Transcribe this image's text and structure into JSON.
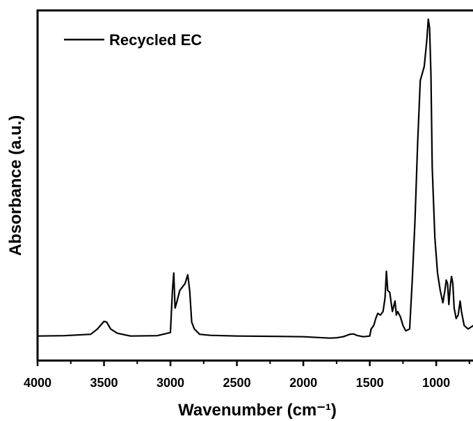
{
  "chart_data": {
    "type": "line",
    "title": "",
    "xlabel": "Wavenumber (cm⁻¹)",
    "ylabel": "Absorbance (a.u.)",
    "xlim": [
      4000,
      650
    ],
    "x_reversed": true,
    "ylim": [
      0,
      1
    ],
    "y_ticks_shown": false,
    "x_ticks": [
      4000,
      3500,
      3000,
      2500,
      2000,
      1500,
      1000
    ],
    "x_tick_labels": [
      "4000",
      "3500",
      "3000",
      "2500",
      "2000",
      "1500",
      "1000"
    ],
    "legend": {
      "placement": "top-left",
      "entries": [
        "Recycled EC"
      ]
    },
    "grid": false,
    "series": [
      {
        "name": "Recycled EC",
        "color": "#000000",
        "x": [
          4000,
          3800,
          3600,
          3550,
          3500,
          3480,
          3450,
          3400,
          3300,
          3100,
          3000,
          2985,
          2975,
          2965,
          2950,
          2930,
          2910,
          2890,
          2870,
          2855,
          2840,
          2820,
          2780,
          2700,
          2500,
          2200,
          2000,
          1900,
          1800,
          1750,
          1700,
          1650,
          1620,
          1600,
          1550,
          1500,
          1490,
          1470,
          1455,
          1440,
          1420,
          1400,
          1385,
          1375,
          1365,
          1350,
          1330,
          1310,
          1300,
          1290,
          1270,
          1250,
          1230,
          1200,
          1180,
          1160,
          1140,
          1120,
          1105,
          1090,
          1080,
          1070,
          1060,
          1050,
          1040,
          1030,
          1010,
          990,
          970,
          950,
          935,
          925,
          915,
          905,
          895,
          885,
          875,
          865,
          850,
          835,
          820,
          810,
          790,
          760,
          720,
          690,
          660
        ],
        "y": [
          0.07,
          0.071,
          0.075,
          0.09,
          0.112,
          0.11,
          0.09,
          0.078,
          0.07,
          0.071,
          0.08,
          0.2,
          0.25,
          0.15,
          0.17,
          0.2,
          0.21,
          0.22,
          0.245,
          0.2,
          0.11,
          0.09,
          0.075,
          0.072,
          0.07,
          0.069,
          0.068,
          0.066,
          0.064,
          0.065,
          0.068,
          0.075,
          0.076,
          0.072,
          0.068,
          0.07,
          0.09,
          0.1,
          0.12,
          0.135,
          0.13,
          0.14,
          0.18,
          0.255,
          0.2,
          0.195,
          0.14,
          0.17,
          0.13,
          0.14,
          0.125,
          0.1,
          0.085,
          0.09,
          0.23,
          0.4,
          0.62,
          0.8,
          0.82,
          0.84,
          0.88,
          0.92,
          0.975,
          0.95,
          0.82,
          0.55,
          0.35,
          0.25,
          0.2,
          0.165,
          0.2,
          0.23,
          0.22,
          0.16,
          0.21,
          0.24,
          0.22,
          0.15,
          0.12,
          0.13,
          0.17,
          0.14,
          0.1,
          0.09,
          0.1,
          0.13,
          0.15
        ]
      }
    ]
  }
}
